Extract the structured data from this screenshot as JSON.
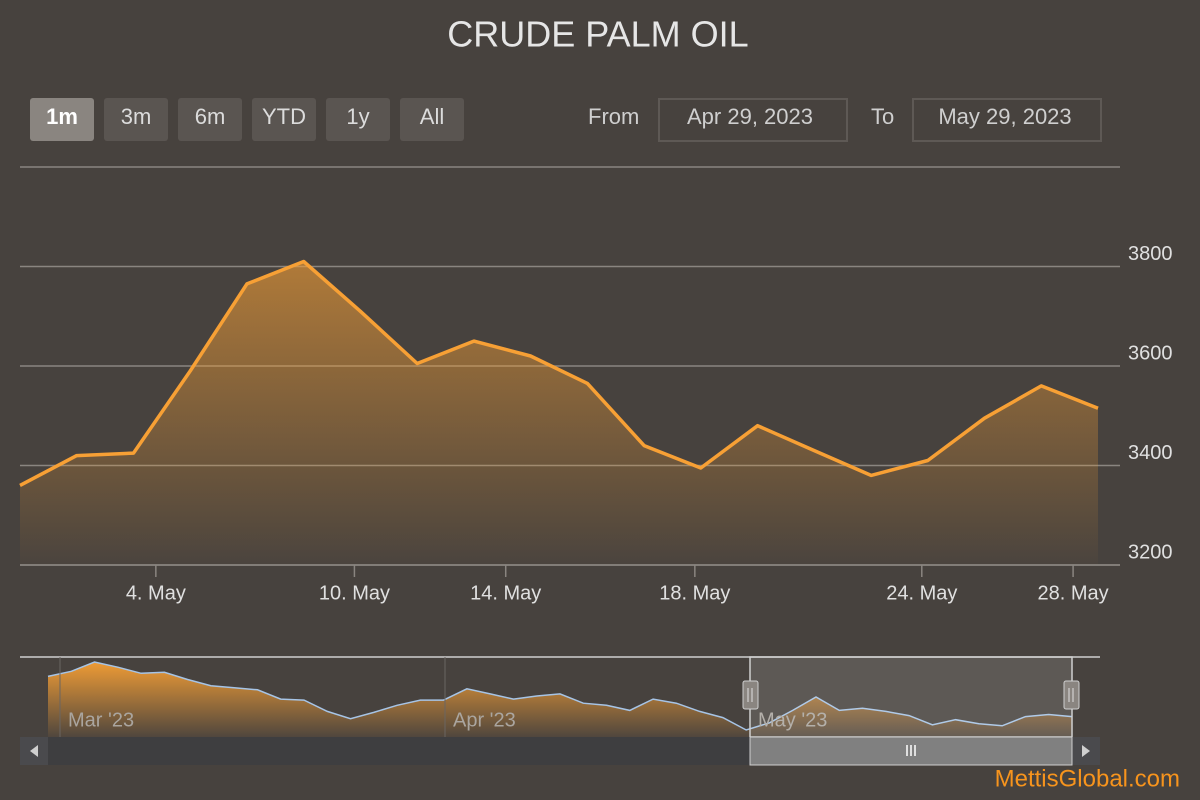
{
  "chart_data": {
    "type": "area",
    "title": "CRUDE PALM OIL",
    "range_buttons": [
      "1m",
      "3m",
      "6m",
      "YTD",
      "1y",
      "All"
    ],
    "range_from_label": "From",
    "range_from": "Apr 29, 2023",
    "range_to_label": "To",
    "range_to": "May 29, 2023",
    "x": [
      "2023-04-28",
      "2023-05-02",
      "2023-05-03",
      "2023-05-05",
      "2023-05-08",
      "2023-05-09",
      "2023-05-10",
      "2023-05-11",
      "2023-05-12",
      "2023-05-15",
      "2023-05-16",
      "2023-05-17",
      "2023-05-18",
      "2023-05-19",
      "2023-05-22",
      "2023-05-23",
      "2023-05-24",
      "2023-05-25",
      "2023-05-26",
      "2023-05-29"
    ],
    "values": [
      3360,
      3420,
      3425,
      3590,
      3765,
      3810,
      3710,
      3605,
      3650,
      3620,
      3565,
      3440,
      3395,
      3480,
      3430,
      3380,
      3410,
      3495,
      3560,
      3515
    ],
    "color": "#f7a035",
    "ylim": [
      3200,
      4000
    ],
    "yticks": [
      3200,
      3400,
      3600,
      3800
    ],
    "xticks": [
      {
        "value": "2023-05-04",
        "label": "4. May"
      },
      {
        "value": "2023-05-10",
        "label": "10. May"
      },
      {
        "value": "2023-05-14",
        "label": "14. May"
      },
      {
        "value": "2023-05-18",
        "label": "18. May"
      },
      {
        "value": "2023-05-24",
        "label": "24. May"
      },
      {
        "value": "2023-05-28",
        "label": "28. May"
      }
    ],
    "grid": true,
    "navigator": {
      "values": [
        4117,
        4194,
        4332,
        4255,
        4163,
        4179,
        4071,
        3979,
        3948,
        3918,
        3779,
        3764,
        3595,
        3487,
        3580,
        3687,
        3764,
        3764,
        3933,
        3856,
        3779,
        3825,
        3856,
        3718,
        3687,
        3610,
        3779,
        3718,
        3595,
        3503,
        3318,
        3426,
        3610,
        3810,
        3610,
        3641,
        3595,
        3533,
        3395,
        3472,
        3411,
        3380,
        3518,
        3549,
        3518
      ],
      "labels": [
        "Mar '23",
        "Apr '23",
        "May '23"
      ],
      "line_color": "#a6c4e6"
    },
    "watermark": "MettisGlobal.com"
  }
}
